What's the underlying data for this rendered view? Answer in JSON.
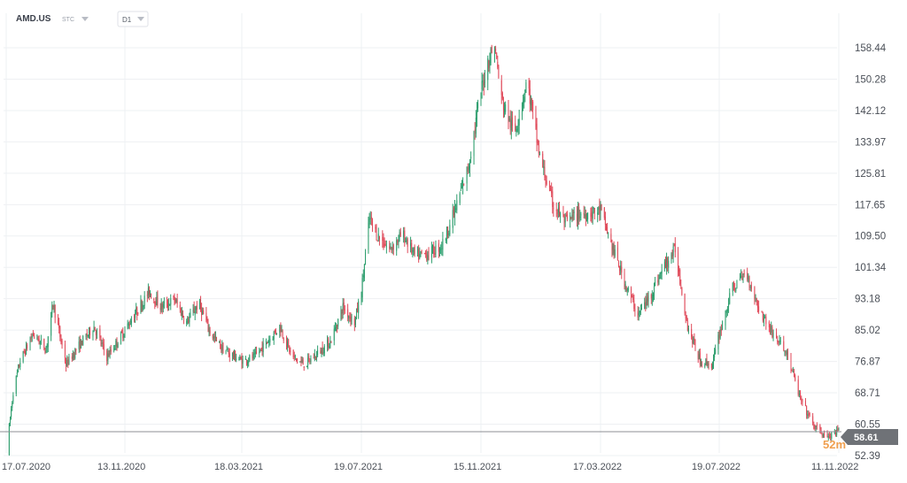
{
  "header": {
    "symbol": "AMD.US",
    "instrument_type": "STC",
    "timeframe": "D1"
  },
  "colors": {
    "up": "#2e9e6e",
    "down": "#e04a5a",
    "grid": "#eef0f3",
    "price_line": "#8c8f94",
    "price_tag": "#6f7277",
    "countdown": "#f0a050"
  },
  "icons": {
    "symbol_menu": "chevron-down-icon",
    "timeframe_menu": "chevron-down-icon"
  },
  "countdown": "52m",
  "chart_data": {
    "type": "candlestick",
    "y_ticks": [
      "158.44",
      "150.28",
      "142.12",
      "133.97",
      "125.81",
      "117.65",
      "109.50",
      "101.34",
      "93.18",
      "85.02",
      "76.87",
      "68.71",
      "60.55",
      "52.39"
    ],
    "x_ticks": [
      "17.07.2020",
      "13.11.2020",
      "18.03.2021",
      "19.07.2021",
      "15.11.2021",
      "17.03.2022",
      "19.07.2022",
      "11.11.2022"
    ],
    "ylim": [
      52.39,
      162.0
    ],
    "last_price": 58.61,
    "grid": true,
    "approx_close_path": [
      [
        "17.07.2020",
        53
      ],
      [
        "24.07.2020",
        69
      ],
      [
        "31.07.2020",
        77
      ],
      [
        "13.08.2020",
        84
      ],
      [
        "26.08.2020",
        80
      ],
      [
        "02.09.2020",
        92
      ],
      [
        "15.09.2020",
        76
      ],
      [
        "28.09.2020",
        81
      ],
      [
        "13.10.2020",
        86
      ],
      [
        "26.10.2020",
        78
      ],
      [
        "13.11.2020",
        85
      ],
      [
        "26.11.2020",
        90
      ],
      [
        "09.12.2020",
        95
      ],
      [
        "22.12.2020",
        91
      ],
      [
        "05.01.2021",
        93
      ],
      [
        "18.01.2021",
        87
      ],
      [
        "31.01.2021",
        92
      ],
      [
        "13.02.2021",
        84
      ],
      [
        "26.02.2021",
        80
      ],
      [
        "18.03.2021",
        77
      ],
      [
        "31.03.2021",
        78
      ],
      [
        "13.04.2021",
        82
      ],
      [
        "26.04.2021",
        86
      ],
      [
        "09.05.2021",
        78
      ],
      [
        "22.05.2021",
        76
      ],
      [
        "04.06.2021",
        79
      ],
      [
        "17.06.2021",
        82
      ],
      [
        "30.06.2021",
        91
      ],
      [
        "12.07.2021",
        87
      ],
      [
        "19.07.2021",
        95
      ],
      [
        "27.07.2021",
        114
      ],
      [
        "03.08.2021",
        110
      ],
      [
        "16.08.2021",
        106
      ],
      [
        "29.08.2021",
        110
      ],
      [
        "11.09.2021",
        104
      ],
      [
        "24.09.2021",
        105
      ],
      [
        "07.10.2021",
        107
      ],
      [
        "20.10.2021",
        116
      ],
      [
        "02.11.2021",
        127
      ],
      [
        "15.11.2021",
        147
      ],
      [
        "22.11.2021",
        155
      ],
      [
        "29.11.2021",
        159
      ],
      [
        "06.12.2021",
        145
      ],
      [
        "19.12.2021",
        136
      ],
      [
        "01.01.2022",
        150
      ],
      [
        "14.01.2022",
        130
      ],
      [
        "27.01.2022",
        118
      ],
      [
        "09.02.2022",
        113
      ],
      [
        "22.02.2022",
        115
      ],
      [
        "17.03.2022",
        116
      ],
      [
        "30.03.2022",
        106
      ],
      [
        "12.04.2022",
        97
      ],
      [
        "25.04.2022",
        89
      ],
      [
        "08.05.2022",
        94
      ],
      [
        "21.05.2022",
        101
      ],
      [
        "03.06.2022",
        106
      ],
      [
        "16.06.2022",
        86
      ],
      [
        "29.06.2022",
        77
      ],
      [
        "12.07.2022",
        76
      ],
      [
        "19.07.2022",
        84
      ],
      [
        "01.08.2022",
        96
      ],
      [
        "14.08.2022",
        100
      ],
      [
        "27.08.2022",
        90
      ],
      [
        "09.09.2022",
        84
      ],
      [
        "22.09.2022",
        79
      ],
      [
        "05.10.2022",
        67
      ],
      [
        "18.10.2022",
        60
      ],
      [
        "31.10.2022",
        57
      ],
      [
        "11.11.2022",
        58.61
      ]
    ]
  }
}
